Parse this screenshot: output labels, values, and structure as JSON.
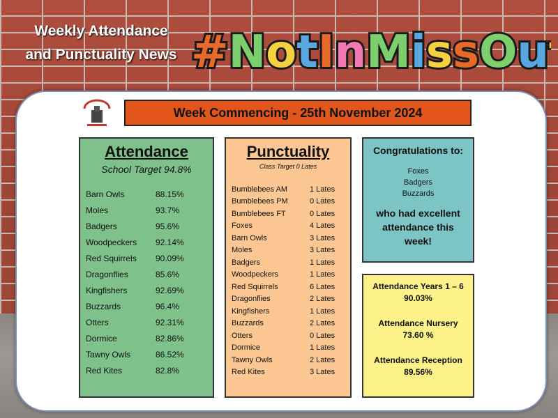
{
  "header": {
    "line1": "Weekly Attendance",
    "line2": "and Punctuality News",
    "hashtag": "#NotInMissOut"
  },
  "school_logo": {
    "icon": "school-crest-icon"
  },
  "week_banner": "Week Commencing - 25th November 2024",
  "attendance": {
    "title": "Attendance",
    "target": "School Target 94.8%",
    "rows": [
      {
        "name": "Barn Owls",
        "value": "88.15%"
      },
      {
        "name": "Moles",
        "value": "93.7%"
      },
      {
        "name": "Badgers",
        "value": "95.6%"
      },
      {
        "name": "Woodpeckers",
        "value": "92.14%"
      },
      {
        "name": "Red Squirrels",
        "value": "90.09%"
      },
      {
        "name": "Dragonflies",
        "value": "85.6%"
      },
      {
        "name": "Kingfishers",
        "value": "92.69%"
      },
      {
        "name": "Buzzards",
        "value": "96.4%"
      },
      {
        "name": "Otters",
        "value": "92.31%"
      },
      {
        "name": "Dormice",
        "value": "82.86%"
      },
      {
        "name": "Tawny Owls",
        "value": "86.52%"
      },
      {
        "name": "Red Kites",
        "value": "82.8%"
      }
    ]
  },
  "punctuality": {
    "title": "Punctuality",
    "target": "Class Target 0 Lates",
    "rows": [
      {
        "name": "Bumblebees AM",
        "value": "1 Lates"
      },
      {
        "name": "Bumblebees PM",
        "value": "0 Lates"
      },
      {
        "name": "Bumblebees FT",
        "value": "0 Lates"
      },
      {
        "name": "Foxes",
        "value": "4 Lates"
      },
      {
        "name": "Barn Owls",
        "value": "3 Lates"
      },
      {
        "name": "Moles",
        "value": "3 Lates"
      },
      {
        "name": "Badgers",
        "value": "1 Lates"
      },
      {
        "name": "Woodpeckers",
        "value": "1 Lates"
      },
      {
        "name": "Red Squirrels",
        "value": "6 Lates"
      },
      {
        "name": "Dragonflies",
        "value": "2 Lates"
      },
      {
        "name": "Kingfishers",
        "value": "1 Lates"
      },
      {
        "name": "Buzzards",
        "value": "2 Lates"
      },
      {
        "name": "Otters",
        "value": "0 Lates"
      },
      {
        "name": "Dormice",
        "value": "1 Lates"
      },
      {
        "name": "Tawny Owls",
        "value": "2 Lates"
      },
      {
        "name": "Red Kites",
        "value": "3 Lates"
      }
    ]
  },
  "congrats": {
    "title": "Congratulations to:",
    "names": [
      "Foxes",
      "Badgers",
      "Buzzards"
    ],
    "message": "who had excellent attendance this week!"
  },
  "totals": [
    {
      "label": "Attendance Years 1 – 6",
      "value": "90.03%"
    },
    {
      "label": "Attendance Nursery",
      "value": "73.60 %"
    },
    {
      "label": "Attendance Reception",
      "value": "89.56%"
    }
  ],
  "colors": {
    "banner": "#e2551b",
    "attendance_panel": "#7fc18a",
    "punctuality_panel": "#fcc792",
    "congrats_panel": "#7dc5c4",
    "totals_panel": "#fdf28a"
  }
}
